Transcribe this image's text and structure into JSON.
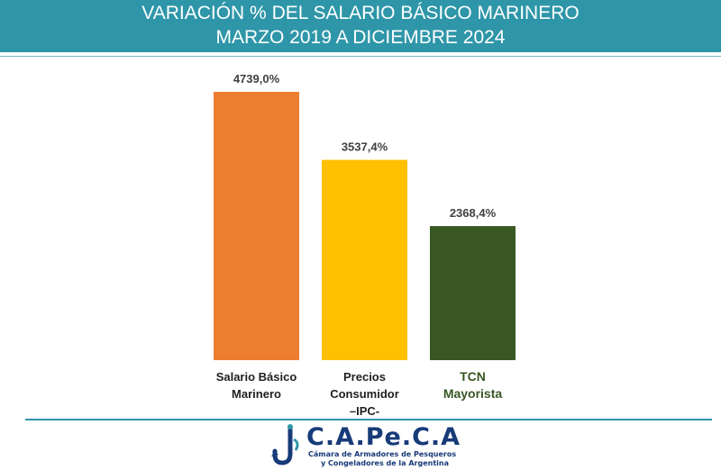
{
  "header": {
    "title_line1": "VARIACIÓN % DEL SALARIO BÁSICO MARINERO",
    "title_line2": "MARZO 2019 A DICIEMBRE 2024"
  },
  "chart_data": {
    "type": "bar",
    "categories": [
      [
        "Salario Básico",
        "Marinero"
      ],
      [
        "Precios",
        "Consumidor",
        "–IPC-"
      ],
      [
        "TCN",
        "Mayorista"
      ]
    ],
    "values": [
      4739.0,
      3537.4,
      2368.4
    ],
    "data_labels": [
      "4739,0%",
      "3537,4%",
      "2368,4%"
    ],
    "colors": [
      "#ed7d31",
      "#ffc000",
      "#385723"
    ],
    "label_colors": [
      "#1f1f1f",
      "#1f1f1f",
      "#385723"
    ],
    "ylim": [
      0,
      4739.0
    ],
    "grid": false
  },
  "logo": {
    "name": "C.A.Pe.C.A",
    "line1": "Cámara de Armadores de Pesqueros",
    "line2": "y Congeladores de la Argentina",
    "color": "#173a78",
    "hook_color": "#2e96a8"
  }
}
